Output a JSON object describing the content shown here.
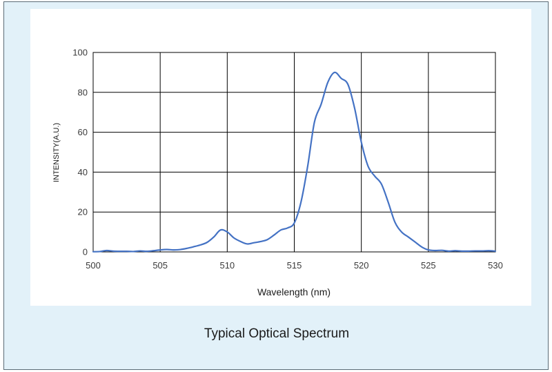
{
  "caption": "Typical Optical Spectrum",
  "chart_data": {
    "type": "line",
    "title": "",
    "xlabel": "Wavelength  (nm)",
    "ylabel": "INTENSITY(A.U.)",
    "xlim": [
      500,
      530
    ],
    "ylim": [
      0,
      100
    ],
    "xticks": [
      500,
      505,
      510,
      515,
      520,
      525,
      530
    ],
    "yticks": [
      0,
      20,
      40,
      60,
      80,
      100
    ],
    "grid": true,
    "line_color": "#4472c4",
    "series": [
      {
        "x": [
          500,
          500.5,
          501,
          501.5,
          502,
          502.5,
          503,
          503.5,
          504,
          504.5,
          505,
          505.5,
          506,
          506.5,
          507,
          507.5,
          508,
          508.5,
          509,
          509.5,
          510,
          510.5,
          511,
          511.5,
          512,
          512.5,
          513,
          513.5,
          514,
          514.5,
          515,
          515.5,
          516,
          516.5,
          517,
          517.5,
          518,
          518.5,
          519,
          519.5,
          520,
          520.5,
          521,
          521.5,
          522,
          522.5,
          523,
          523.5,
          524,
          524.5,
          525,
          525.5,
          526,
          526.5,
          527,
          527.5,
          528,
          528.5,
          529,
          529.5,
          530
        ],
        "y": [
          0.1,
          0.2,
          0.7,
          0.4,
          0.3,
          0.3,
          0.2,
          0.5,
          0.3,
          0.6,
          1.0,
          1.2,
          1.0,
          1.2,
          1.8,
          2.6,
          3.5,
          4.8,
          7.5,
          11.0,
          10.0,
          7.0,
          5.2,
          4.0,
          4.6,
          5.2,
          6.2,
          8.5,
          11.0,
          12.0,
          14.5,
          25.0,
          43.0,
          65.0,
          74.0,
          85.0,
          90.0,
          87.0,
          84.0,
          72.0,
          55.0,
          43.0,
          38.0,
          34.0,
          25.0,
          15.0,
          10.0,
          7.5,
          5.0,
          2.5,
          1.0,
          0.7,
          0.8,
          0.4,
          0.6,
          0.4,
          0.4,
          0.5,
          0.5,
          0.6,
          0.4
        ]
      }
    ]
  }
}
